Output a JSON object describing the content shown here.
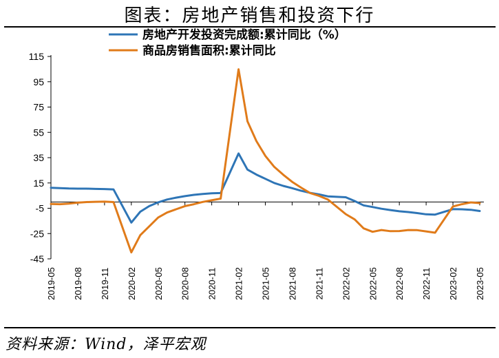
{
  "title": "图表：房地产销售和投资下行",
  "source": "资料来源：Wind，泽平宏观",
  "colors": {
    "investment": "#2E75B6",
    "sales": "#E07B1A"
  },
  "chart_data": {
    "type": "line",
    "ylim": [
      -45,
      115
    ],
    "yticks": [
      115,
      95,
      75,
      55,
      35,
      15,
      -5,
      -25,
      -45
    ],
    "xticks": [
      "2019-05",
      "2019-08",
      "2019-11",
      "2020-02",
      "2020-05",
      "2020-08",
      "2020-11",
      "2021-02",
      "2021-05",
      "2021-08",
      "2021-11",
      "2022-02",
      "2022-05",
      "2022-08",
      "2022-11",
      "2023-02",
      "2023-05"
    ],
    "x": [
      "2019-05",
      "2019-06",
      "2019-07",
      "2019-08",
      "2019-09",
      "2019-10",
      "2019-11",
      "2019-12",
      "2020-02",
      "2020-03",
      "2020-04",
      "2020-05",
      "2020-06",
      "2020-07",
      "2020-08",
      "2020-09",
      "2020-10",
      "2020-11",
      "2020-12",
      "2021-02",
      "2021-03",
      "2021-04",
      "2021-05",
      "2021-06",
      "2021-07",
      "2021-08",
      "2021-09",
      "2021-10",
      "2021-11",
      "2021-12",
      "2022-02",
      "2022-03",
      "2022-04",
      "2022-05",
      "2022-06",
      "2022-07",
      "2022-08",
      "2022-09",
      "2022-10",
      "2022-11",
      "2022-12",
      "2023-02",
      "2023-03",
      "2023-04",
      "2023-05"
    ],
    "series": [
      {
        "name": "房地产开发投资完成额:累计同比（%）",
        "color": "#2E75B6",
        "values": [
          11.2,
          10.9,
          10.6,
          10.5,
          10.5,
          10.3,
          10.2,
          9.9,
          -16.3,
          -7.7,
          -3.3,
          -0.3,
          1.9,
          3.4,
          4.6,
          5.6,
          6.3,
          6.8,
          7.0,
          38.3,
          25.6,
          21.6,
          18.3,
          15.0,
          12.7,
          10.9,
          8.8,
          7.2,
          6.0,
          4.4,
          3.7,
          0.7,
          -2.7,
          -4.0,
          -5.4,
          -6.4,
          -7.4,
          -8.0,
          -8.8,
          -9.8,
          -10.0,
          -5.7,
          -5.8,
          -6.2,
          -7.2
        ]
      },
      {
        "name": "商品房销售面积:累计同比",
        "color": "#E07B1A",
        "values": [
          -1.6,
          -1.8,
          -1.3,
          -0.6,
          -0.1,
          0.1,
          0.2,
          -0.1,
          -39.9,
          -26.3,
          -19.3,
          -12.3,
          -8.4,
          -5.8,
          -3.3,
          -1.8,
          0.0,
          1.3,
          2.6,
          104.9,
          63.8,
          48.1,
          36.4,
          27.7,
          21.5,
          15.9,
          11.3,
          7.1,
          4.8,
          1.9,
          -9.6,
          -13.8,
          -20.9,
          -23.6,
          -22.2,
          -23.1,
          -23.0,
          -22.2,
          -22.3,
          -23.3,
          -24.3,
          -3.6,
          -1.8,
          -0.4,
          -0.9
        ]
      }
    ]
  }
}
